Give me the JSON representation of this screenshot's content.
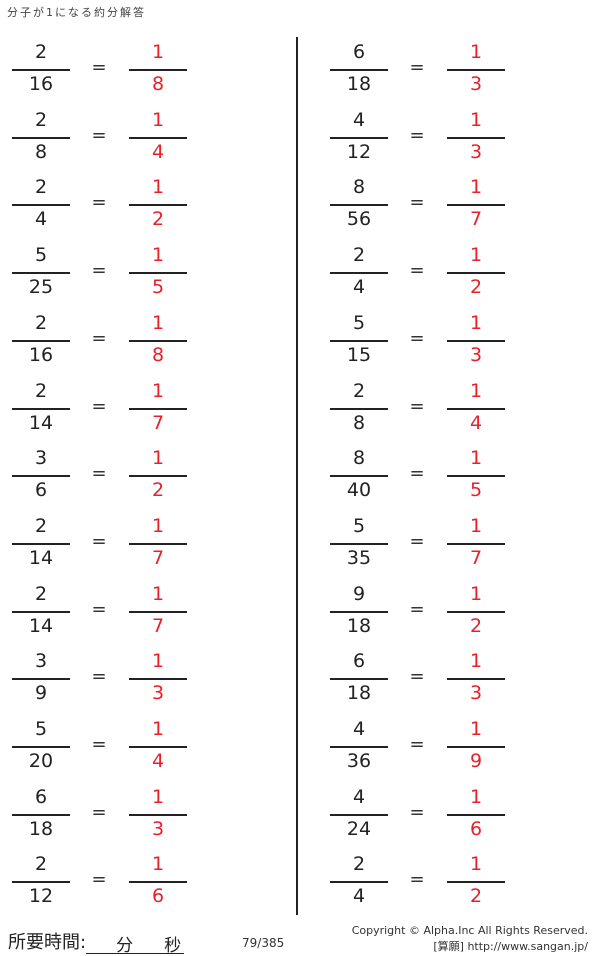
{
  "title": "分子が1になる約分解答",
  "left_problems": [
    {
      "num": "2",
      "den": "16",
      "ans_num": "1",
      "ans_den": "8"
    },
    {
      "num": "2",
      "den": "8",
      "ans_num": "1",
      "ans_den": "4"
    },
    {
      "num": "2",
      "den": "4",
      "ans_num": "1",
      "ans_den": "2"
    },
    {
      "num": "5",
      "den": "25",
      "ans_num": "1",
      "ans_den": "5"
    },
    {
      "num": "2",
      "den": "16",
      "ans_num": "1",
      "ans_den": "8"
    },
    {
      "num": "2",
      "den": "14",
      "ans_num": "1",
      "ans_den": "7"
    },
    {
      "num": "3",
      "den": "6",
      "ans_num": "1",
      "ans_den": "2"
    },
    {
      "num": "2",
      "den": "14",
      "ans_num": "1",
      "ans_den": "7"
    },
    {
      "num": "2",
      "den": "14",
      "ans_num": "1",
      "ans_den": "7"
    },
    {
      "num": "3",
      "den": "9",
      "ans_num": "1",
      "ans_den": "3"
    },
    {
      "num": "5",
      "den": "20",
      "ans_num": "1",
      "ans_den": "4"
    },
    {
      "num": "6",
      "den": "18",
      "ans_num": "1",
      "ans_den": "3"
    },
    {
      "num": "2",
      "den": "12",
      "ans_num": "1",
      "ans_den": "6"
    }
  ],
  "right_problems": [
    {
      "num": "6",
      "den": "18",
      "ans_num": "1",
      "ans_den": "3"
    },
    {
      "num": "4",
      "den": "12",
      "ans_num": "1",
      "ans_den": "3"
    },
    {
      "num": "8",
      "den": "56",
      "ans_num": "1",
      "ans_den": "7"
    },
    {
      "num": "2",
      "den": "4",
      "ans_num": "1",
      "ans_den": "2"
    },
    {
      "num": "5",
      "den": "15",
      "ans_num": "1",
      "ans_den": "3"
    },
    {
      "num": "2",
      "den": "8",
      "ans_num": "1",
      "ans_den": "4"
    },
    {
      "num": "8",
      "den": "40",
      "ans_num": "1",
      "ans_den": "5"
    },
    {
      "num": "5",
      "den": "35",
      "ans_num": "1",
      "ans_den": "7"
    },
    {
      "num": "9",
      "den": "18",
      "ans_num": "1",
      "ans_den": "2"
    },
    {
      "num": "6",
      "den": "18",
      "ans_num": "1",
      "ans_den": "3"
    },
    {
      "num": "4",
      "den": "36",
      "ans_num": "1",
      "ans_den": "9"
    },
    {
      "num": "4",
      "den": "24",
      "ans_num": "1",
      "ans_den": "6"
    },
    {
      "num": "2",
      "den": "4",
      "ans_num": "1",
      "ans_den": "2"
    }
  ],
  "equals": "=",
  "footer": {
    "time_label": "所要時間:",
    "minutes": "分",
    "seconds": "秒",
    "page": "79/385",
    "copyright": "Copyright ©  Alpha.Inc All Rights Reserved.",
    "site": "[算願] http://www.sangan.jp/"
  },
  "colors": {
    "answer": "#e8202a",
    "text": "#222222"
  }
}
